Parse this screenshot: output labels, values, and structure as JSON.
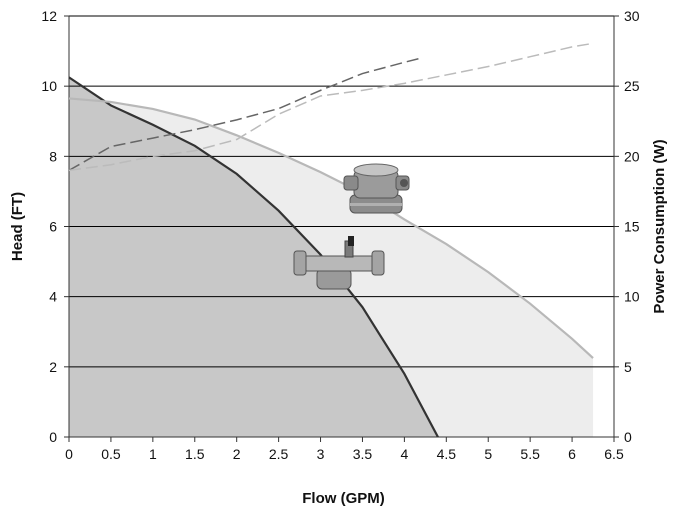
{
  "chart_data": {
    "type": "line",
    "title": "",
    "xlabel": "Flow (GPM)",
    "ylabel": "Head (FT)",
    "y2label": "Power Consumption (W)",
    "xlim": [
      0,
      6.5
    ],
    "ylim": [
      0,
      12
    ],
    "y2lim": [
      0,
      30
    ],
    "grid": true,
    "legend": "none",
    "x_ticks": [
      "0",
      "0.5",
      "1",
      "1.5",
      "2",
      "2.5",
      "3",
      "3.5",
      "4",
      "4.5",
      "5",
      "5.5",
      "6",
      "6.5"
    ],
    "y_ticks": [
      "0",
      "2",
      "4",
      "6",
      "8",
      "10",
      "12"
    ],
    "y2_ticks": [
      "0",
      "5",
      "10",
      "15",
      "20",
      "25",
      "30"
    ],
    "series": [
      {
        "axis": "head",
        "style": "solid",
        "color": "#333333",
        "fill": "#c8c8c8",
        "x": [
          0,
          0.5,
          1,
          1.5,
          2,
          2.5,
          3,
          3.5,
          4,
          4.4
        ],
        "y": [
          10.25,
          9.45,
          8.9,
          8.3,
          7.5,
          6.45,
          5.2,
          3.7,
          1.8,
          0
        ]
      },
      {
        "axis": "head",
        "style": "solid",
        "color": "#b8b8b8",
        "fill": "#ededed",
        "x": [
          0,
          0.5,
          1,
          1.5,
          2,
          2.5,
          3,
          3.5,
          4,
          4.5,
          5,
          5.5,
          6,
          6.25
        ],
        "y": [
          9.65,
          9.55,
          9.35,
          9.05,
          8.6,
          8.1,
          7.55,
          6.95,
          6.2,
          5.5,
          4.7,
          3.8,
          2.8,
          2.25
        ]
      },
      {
        "axis": "power",
        "style": "dashed",
        "color": "#666666",
        "x": [
          0,
          0.5,
          1,
          1.5,
          2,
          2.5,
          3,
          3.5,
          4,
          4.2
        ],
        "y": [
          19,
          20.7,
          21.3,
          21.9,
          22.6,
          23.4,
          24.7,
          25.9,
          26.7,
          27
        ]
      },
      {
        "axis": "power",
        "style": "dashed",
        "color": "#bbbbbb",
        "x": [
          0,
          0.5,
          1,
          1.5,
          2,
          2.5,
          3,
          3.5,
          4,
          4.5,
          5,
          5.5,
          6,
          6.2
        ],
        "y": [
          19,
          19.4,
          20,
          20.4,
          21.2,
          23,
          24.3,
          24.7,
          25.2,
          25.8,
          26.4,
          27.1,
          27.8,
          28
        ]
      }
    ]
  }
}
